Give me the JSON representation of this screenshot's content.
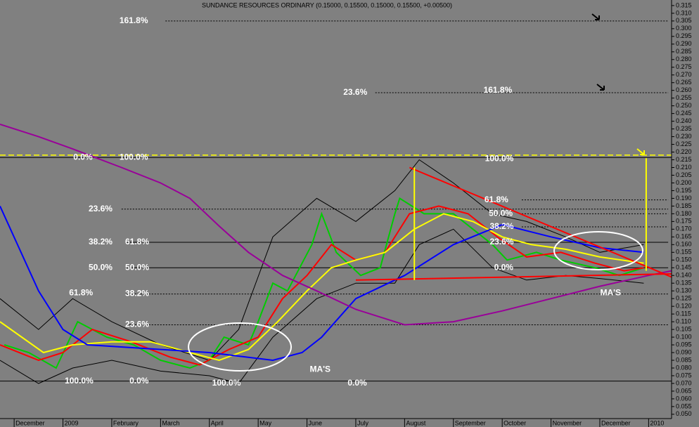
{
  "chart_data": {
    "type": "line",
    "title": "SUNDANCE RESOURCES ORDINARY (0.15000, 0.15500, 0.15000, 0.15500, +0.00500)",
    "xlim": [
      -0.29,
      13.47
    ],
    "ylim": [
      0.0463,
      0.3186
    ],
    "xticks": [
      {
        "value": 0,
        "label": "December"
      },
      {
        "value": 1,
        "label": "2009"
      },
      {
        "value": 2,
        "label": "February"
      },
      {
        "value": 3,
        "label": "March"
      },
      {
        "value": 4,
        "label": "April"
      },
      {
        "value": 5,
        "label": "May"
      },
      {
        "value": 6,
        "label": "June"
      },
      {
        "value": 7,
        "label": "July"
      },
      {
        "value": 8,
        "label": "August"
      },
      {
        "value": 9,
        "label": "September"
      },
      {
        "value": 10,
        "label": "October"
      },
      {
        "value": 11,
        "label": "November"
      },
      {
        "value": 12,
        "label": "December"
      },
      {
        "value": 13,
        "label": "2010"
      }
    ],
    "yticks": [
      {
        "value": 0.05,
        "label": "0.050"
      },
      {
        "value": 0.055,
        "label": "0.055"
      },
      {
        "value": 0.06,
        "label": "0.060"
      },
      {
        "value": 0.065,
        "label": "0.065"
      },
      {
        "value": 0.07,
        "label": "0.070"
      },
      {
        "value": 0.075,
        "label": "0.075"
      },
      {
        "value": 0.08,
        "label": "0.080"
      },
      {
        "value": 0.085,
        "label": "0.085"
      },
      {
        "value": 0.09,
        "label": "0.090"
      },
      {
        "value": 0.095,
        "label": "0.095"
      },
      {
        "value": 0.1,
        "label": "0.100"
      },
      {
        "value": 0.105,
        "label": "0.105"
      },
      {
        "value": 0.11,
        "label": "0.110"
      },
      {
        "value": 0.115,
        "label": "0.115"
      },
      {
        "value": 0.12,
        "label": "0.120"
      },
      {
        "value": 0.125,
        "label": "0.125"
      },
      {
        "value": 0.13,
        "label": "0.130"
      },
      {
        "value": 0.135,
        "label": "0.135"
      },
      {
        "value": 0.14,
        "label": "0.140"
      },
      {
        "value": 0.145,
        "label": "0.145"
      },
      {
        "value": 0.15,
        "label": "0.150"
      },
      {
        "value": 0.155,
        "label": "0.155"
      },
      {
        "value": 0.16,
        "label": "0.160"
      },
      {
        "value": 0.165,
        "label": "0.165"
      },
      {
        "value": 0.17,
        "label": "0.170"
      },
      {
        "value": 0.175,
        "label": "0.175"
      },
      {
        "value": 0.18,
        "label": "0.180"
      },
      {
        "value": 0.185,
        "label": "0.185"
      },
      {
        "value": 0.19,
        "label": "0.190"
      },
      {
        "value": 0.195,
        "label": "0.195"
      },
      {
        "value": 0.2,
        "label": "0.200"
      },
      {
        "value": 0.205,
        "label": "0.205"
      },
      {
        "value": 0.21,
        "label": "0.210"
      },
      {
        "value": 0.215,
        "label": "0.215"
      },
      {
        "value": 0.22,
        "label": "0.220"
      },
      {
        "value": 0.225,
        "label": "0.225"
      },
      {
        "value": 0.23,
        "label": "0.230"
      },
      {
        "value": 0.235,
        "label": "0.235"
      },
      {
        "value": 0.24,
        "label": "0.240"
      },
      {
        "value": 0.245,
        "label": "0.245"
      },
      {
        "value": 0.25,
        "label": "0.250"
      },
      {
        "value": 0.255,
        "label": "0.255"
      },
      {
        "value": 0.26,
        "label": "0.260"
      },
      {
        "value": 0.265,
        "label": "0.265"
      },
      {
        "value": 0.27,
        "label": "0.270"
      },
      {
        "value": 0.275,
        "label": "0.275"
      },
      {
        "value": 0.28,
        "label": "0.280"
      },
      {
        "value": 0.285,
        "label": "0.285"
      },
      {
        "value": 0.29,
        "label": "0.290"
      },
      {
        "value": 0.295,
        "label": "0.295"
      },
      {
        "value": 0.3,
        "label": "0.300"
      },
      {
        "value": 0.305,
        "label": "0.305"
      },
      {
        "value": 0.31,
        "label": "0.310"
      },
      {
        "value": 0.315,
        "label": "0.315"
      }
    ],
    "series": [
      {
        "color": "#000000",
        "x": [
          -0.29,
          0.5,
          1.2,
          2.0,
          3.0,
          4.0,
          4.6,
          5.3,
          6.2,
          7.0,
          7.8,
          8.3,
          9.0,
          9.8,
          10.5,
          11.3,
          12.0,
          12.9
        ],
        "values": [
          0.125,
          0.105,
          0.125,
          0.11,
          0.095,
          0.085,
          0.105,
          0.165,
          0.19,
          0.175,
          0.195,
          0.215,
          0.2,
          0.18,
          0.175,
          0.165,
          0.155,
          0.16
        ]
      },
      {
        "color": "#000000",
        "x": [
          -0.29,
          0.5,
          1.2,
          2.0,
          3.0,
          4.0,
          4.6,
          5.3,
          6.2,
          7.0,
          7.8,
          8.3,
          9.0,
          9.8,
          10.5,
          11.3,
          12.0,
          12.9
        ],
        "values": [
          0.085,
          0.07,
          0.08,
          0.085,
          0.078,
          0.075,
          0.07,
          0.1,
          0.125,
          0.135,
          0.135,
          0.16,
          0.17,
          0.145,
          0.137,
          0.14,
          0.138,
          0.135
        ]
      },
      {
        "color": "#00cc00",
        "x": [
          -0.2,
          0.3,
          0.86,
          1.3,
          1.9,
          2.45,
          3.0,
          3.6,
          4.0,
          4.3,
          4.8,
          5.0,
          5.3,
          5.6,
          6.1,
          6.3,
          6.6,
          7.1,
          7.5,
          7.8,
          7.9,
          8.4,
          9.0,
          9.4,
          9.8,
          10.1,
          10.7,
          11.2,
          11.9,
          12.4,
          12.9
        ],
        "values": [
          0.095,
          0.09,
          0.08,
          0.11,
          0.1,
          0.095,
          0.085,
          0.08,
          0.085,
          0.1,
          0.095,
          0.11,
          0.135,
          0.13,
          0.16,
          0.18,
          0.155,
          0.14,
          0.145,
          0.18,
          0.19,
          0.18,
          0.18,
          0.17,
          0.16,
          0.15,
          0.155,
          0.15,
          0.145,
          0.14,
          0.145
        ]
      },
      {
        "color": "#ff0000",
        "x": [
          -0.29,
          0.5,
          1.0,
          1.6,
          2.4,
          3.2,
          3.8,
          4.4,
          5.0,
          5.5,
          6.0,
          6.5,
          7.0,
          7.6,
          8.1,
          8.7,
          9.3,
          9.9,
          10.5,
          11.2,
          11.9,
          12.5,
          12.9
        ],
        "values": [
          0.095,
          0.085,
          0.09,
          0.105,
          0.097,
          0.087,
          0.082,
          0.092,
          0.1,
          0.125,
          0.14,
          0.16,
          0.15,
          0.155,
          0.18,
          0.185,
          0.18,
          0.165,
          0.152,
          0.155,
          0.148,
          0.143,
          0.145
        ]
      },
      {
        "color": "#ffff00",
        "x": [
          -0.29,
          0.6,
          1.2,
          2.0,
          2.8,
          3.6,
          4.2,
          4.8,
          5.4,
          6.0,
          6.5,
          7.0,
          7.6,
          8.2,
          8.8,
          9.4,
          10.0,
          10.6,
          11.3,
          12.0,
          12.9
        ],
        "values": [
          0.11,
          0.09,
          0.095,
          0.097,
          0.097,
          0.09,
          0.085,
          0.092,
          0.11,
          0.13,
          0.145,
          0.15,
          0.155,
          0.17,
          0.18,
          0.175,
          0.165,
          0.16,
          0.157,
          0.152,
          0.148
        ]
      },
      {
        "color": "#0000ff",
        "x": [
          -0.29,
          0.5,
          1.0,
          1.5,
          2.5,
          4.0,
          5.3,
          5.9,
          6.3,
          7.0,
          8.0,
          9.0,
          10.0,
          11.0,
          12.0,
          12.9
        ],
        "values": [
          0.185,
          0.13,
          0.105,
          0.095,
          0.093,
          0.09,
          0.085,
          0.09,
          0.1,
          0.125,
          0.14,
          0.16,
          0.173,
          0.165,
          0.158,
          0.155
        ]
      },
      {
        "color": "#990099",
        "x": [
          -0.29,
          0.5,
          1.2,
          2.2,
          3.0,
          3.6,
          4.2,
          4.8,
          5.5,
          6.2,
          7.0,
          8.0,
          9.0,
          10.0,
          11.0,
          12.0,
          13.0,
          13.47
        ],
        "values": [
          0.238,
          0.23,
          0.222,
          0.21,
          0.2,
          0.19,
          0.172,
          0.155,
          0.14,
          0.13,
          0.118,
          0.108,
          0.11,
          0.117,
          0.125,
          0.133,
          0.14,
          0.143
        ]
      }
    ],
    "trendlines": [
      {
        "color": "#ff0000",
        "x": [
          8.1,
          13.47
        ],
        "values": [
          0.21,
          0.139
        ]
      },
      {
        "color": "#ff0000",
        "x": [
          7.0,
          13.47
        ],
        "values": [
          0.137,
          0.141
        ]
      },
      {
        "color": "#ffff00",
        "x": [
          8.2,
          8.2
        ],
        "values": [
          0.137,
          0.21
        ]
      },
      {
        "color": "#ffff00",
        "x": [
          12.95,
          12.95
        ],
        "values": [
          0.143,
          0.216
        ]
      }
    ],
    "levels": [
      {
        "value": 0.305,
        "x": [
          3.1,
          13.4
        ],
        "style": "dashed",
        "color": "#000000"
      },
      {
        "value": 0.2585,
        "x": [
          7.4,
          13.4
        ],
        "style": "dashed",
        "color": "#000000"
      },
      {
        "value": 0.218,
        "x": [
          -0.29,
          13.47
        ],
        "style": "dashed",
        "color": "#ffff00"
      },
      {
        "value": 0.2165,
        "x": [
          -0.29,
          13.47
        ],
        "style": "solid",
        "color": "#000000"
      },
      {
        "value": 0.189,
        "x": [
          10.4,
          13.4
        ],
        "style": "dashed",
        "color": "#000000"
      },
      {
        "value": 0.183,
        "x": [
          2.2,
          13.4
        ],
        "style": "dashed",
        "color": "#000000"
      },
      {
        "value": 0.18,
        "x": [
          10.4,
          13.4
        ],
        "style": "dashed",
        "color": "#000000"
      },
      {
        "value": 0.1715,
        "x": [
          10.4,
          13.4
        ],
        "style": "dashed",
        "color": "#000000"
      },
      {
        "value": 0.1615,
        "x": [
          2.3,
          13.4
        ],
        "style": "solid",
        "color": "#000000"
      },
      {
        "value": 0.145,
        "x": [
          2.3,
          13.4
        ],
        "style": "solid",
        "color": "#000000"
      },
      {
        "value": 0.128,
        "x": [
          2.3,
          13.4
        ],
        "style": "dashed",
        "color": "#000000"
      },
      {
        "value": 0.108,
        "x": [
          2.3,
          13.4
        ],
        "style": "dashed",
        "color": "#000000"
      },
      {
        "value": 0.0715,
        "x": [
          -0.29,
          13.47
        ],
        "style": "solid",
        "color": "#000000"
      }
    ],
    "annotations": [
      {
        "text": "161.8%",
        "x": 2.45,
        "y": 0.305
      },
      {
        "text": "23.6%",
        "x": 6.99,
        "y": 0.2585
      },
      {
        "text": "161.8%",
        "x": 9.91,
        "y": 0.26
      },
      {
        "text": "0.0%",
        "x": 1.41,
        "y": 0.2165
      },
      {
        "text": "100.0%",
        "x": 2.45,
        "y": 0.2165
      },
      {
        "text": "100.0%",
        "x": 9.94,
        "y": 0.2155
      },
      {
        "text": "61.8%",
        "x": 9.88,
        "y": 0.189
      },
      {
        "text": "50.0%",
        "x": 9.97,
        "y": 0.18
      },
      {
        "text": "38.2%",
        "x": 9.99,
        "y": 0.1715
      },
      {
        "text": "23.6%",
        "x": 9.99,
        "y": 0.1615
      },
      {
        "text": "0.0%",
        "x": 10.03,
        "y": 0.145
      },
      {
        "text": "23.6%",
        "x": 1.77,
        "y": 0.183
      },
      {
        "text": "38.2%",
        "x": 1.77,
        "y": 0.1615
      },
      {
        "text": "61.8%",
        "x": 2.52,
        "y": 0.1615
      },
      {
        "text": "50.0%",
        "x": 1.77,
        "y": 0.145
      },
      {
        "text": "50.0%",
        "x": 2.52,
        "y": 0.145
      },
      {
        "text": "61.8%",
        "x": 1.37,
        "y": 0.1285
      },
      {
        "text": "38.2%",
        "x": 2.52,
        "y": 0.128
      },
      {
        "text": "23.6%",
        "x": 2.52,
        "y": 0.108
      },
      {
        "text": "100.0%",
        "x": 1.33,
        "y": 0.0715
      },
      {
        "text": "0.0%",
        "x": 2.56,
        "y": 0.0715
      },
      {
        "text": "100.0%",
        "x": 4.35,
        "y": 0.07
      },
      {
        "text": "0.0%",
        "x": 7.03,
        "y": 0.07
      },
      {
        "text": "MA'S",
        "x": 6.27,
        "y": 0.079
      },
      {
        "text": "MA'S",
        "x": 12.22,
        "y": 0.1285
      }
    ]
  }
}
